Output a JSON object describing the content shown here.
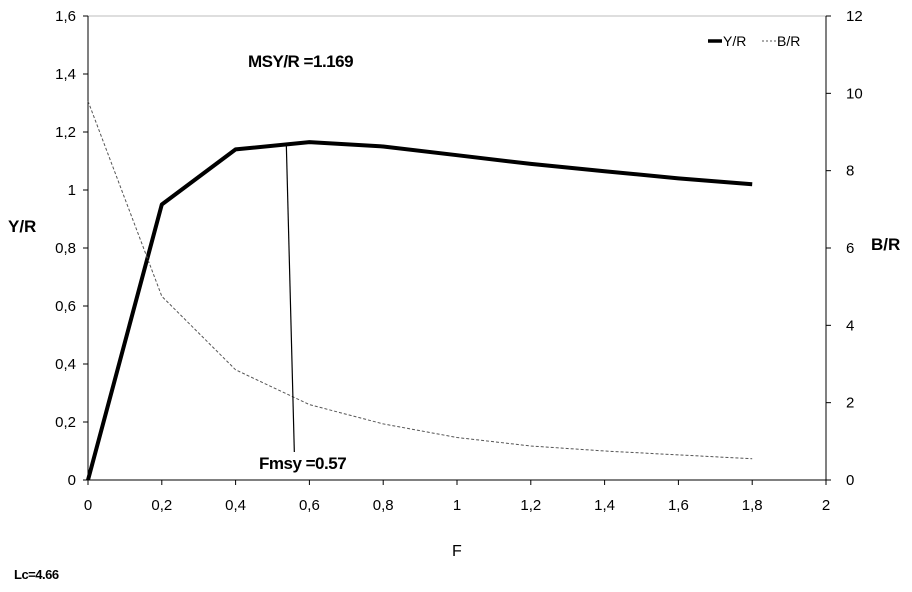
{
  "chart_data": {
    "type": "line",
    "x_axis": {
      "label": "F",
      "range": [
        0,
        2
      ],
      "ticks": [
        "0",
        "0,2",
        "0,4",
        "0,6",
        "0,8",
        "1",
        "1,2",
        "1,4",
        "1,6",
        "1,8",
        "2"
      ]
    },
    "y_axis_left": {
      "label": "Y/R",
      "range": [
        0,
        1.6
      ],
      "ticks": [
        "0",
        "0,2",
        "0,4",
        "0,6",
        "0,8",
        "1",
        "1,2",
        "1,4",
        "1,6"
      ]
    },
    "y_axis_right": {
      "label": "B/R",
      "range": [
        0,
        12
      ],
      "ticks": [
        "0",
        "2",
        "4",
        "6",
        "8",
        "10",
        "12"
      ]
    },
    "series": [
      {
        "name": "Y/R",
        "axis": "left",
        "style": "thick-solid",
        "color": "#000000",
        "x": [
          0,
          0.2,
          0.4,
          0.6,
          0.8,
          1.0,
          1.2,
          1.4,
          1.6,
          1.8
        ],
        "y": [
          0,
          0.95,
          1.14,
          1.165,
          1.15,
          1.12,
          1.09,
          1.065,
          1.04,
          1.02
        ]
      },
      {
        "name": "B/R",
        "axis": "right",
        "style": "thin-dashed",
        "color": "#555555",
        "x": [
          0,
          0.2,
          0.4,
          0.6,
          0.8,
          1.0,
          1.2,
          1.4,
          1.6,
          1.8
        ],
        "y": [
          9.8,
          4.75,
          2.85,
          1.95,
          1.45,
          1.1,
          0.88,
          0.75,
          0.65,
          0.55
        ]
      }
    ],
    "annotations": {
      "msy": "MSY/R   =1.169",
      "fmsy": "Fmsy  =0.57",
      "fmsy_x": 0.57,
      "fmsy_y": 1.169
    },
    "legend": {
      "position": "top-right"
    },
    "grid": false
  },
  "footnote": "Lc=4.66"
}
